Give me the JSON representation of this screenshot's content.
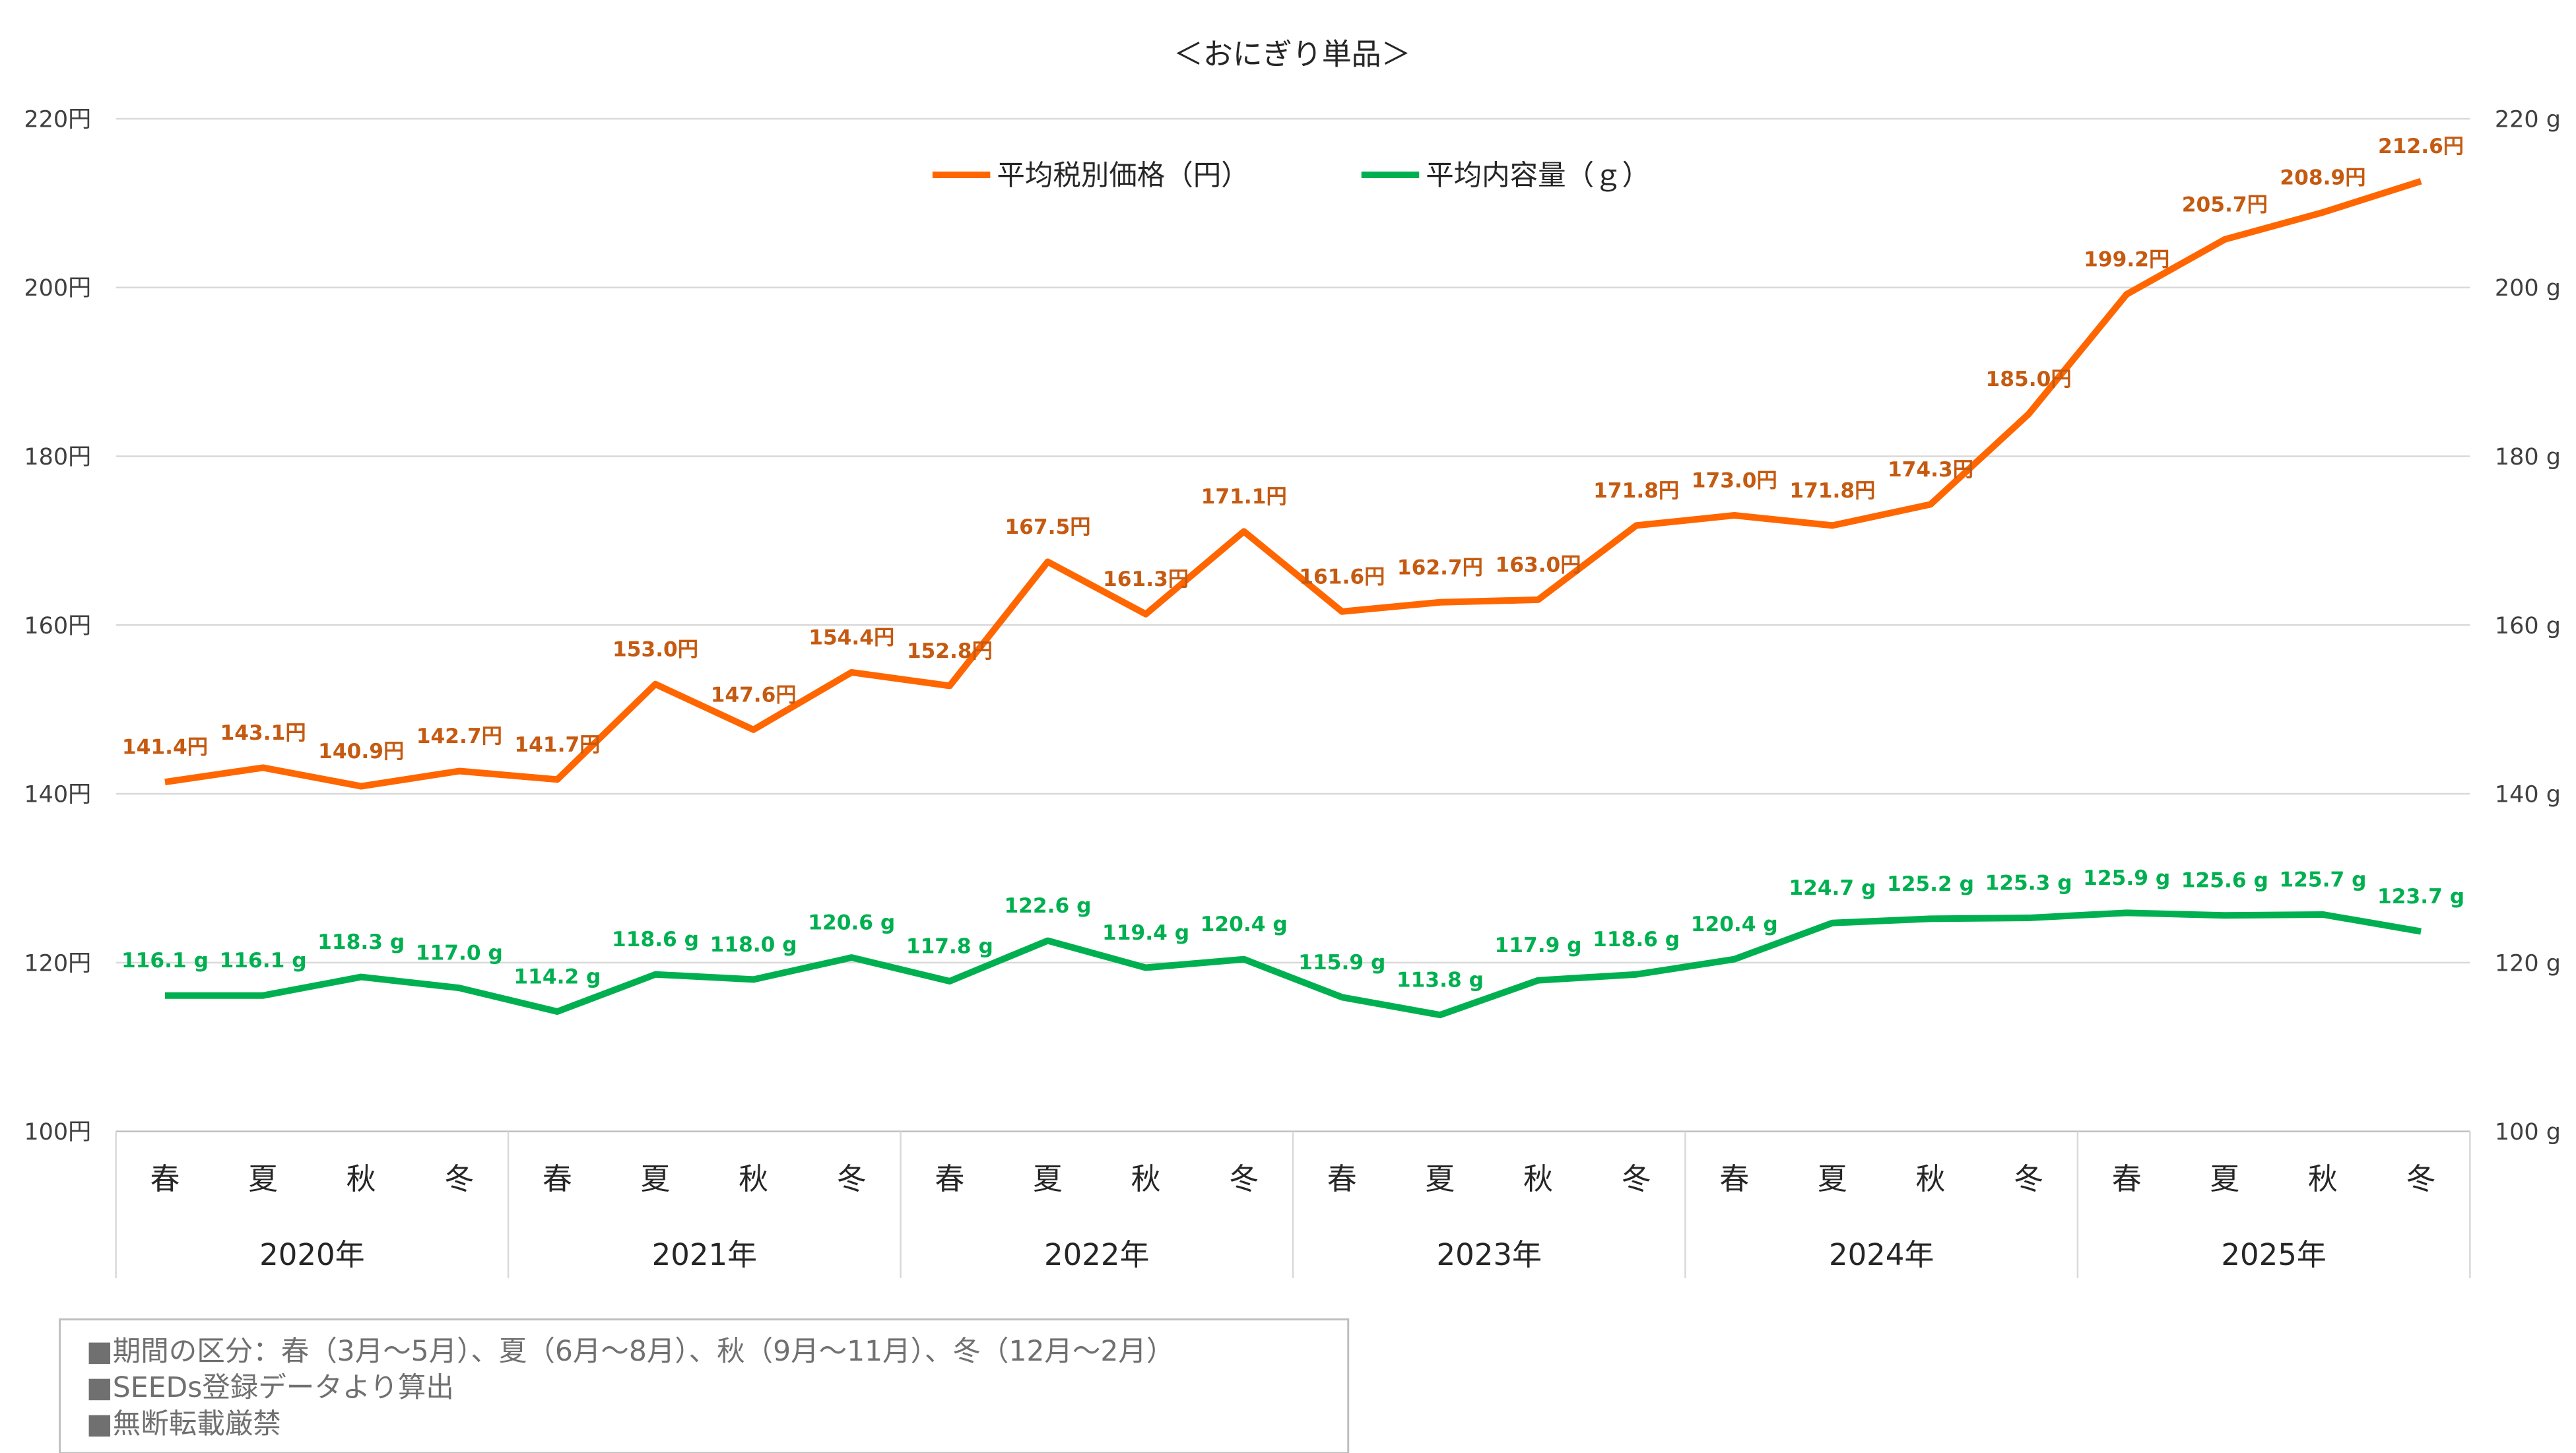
{
  "chart_data": {
    "type": "line",
    "title": "＜おにぎり単品＞",
    "years": [
      "2020年",
      "2021年",
      "2022年",
      "2023年",
      "2024年",
      "2025年"
    ],
    "seasons": [
      "春",
      "夏",
      "秋",
      "冬"
    ],
    "y_left": {
      "min": 100,
      "max": 220,
      "step": 20,
      "suffix": "円"
    },
    "y_right": {
      "min": 100,
      "max": 220,
      "step": 20,
      "suffix": "g"
    },
    "grid": true,
    "legend_position": "top-center",
    "series": [
      {
        "name": "平均税別価格（円）",
        "axis": "left",
        "color": "#FF6600",
        "label_color": "#C55A11",
        "unit": "円",
        "values": [
          141.4,
          143.1,
          140.9,
          142.7,
          141.7,
          153.0,
          147.6,
          154.4,
          152.8,
          167.5,
          161.3,
          171.1,
          161.6,
          162.7,
          163.0,
          171.8,
          173.0,
          171.8,
          174.3,
          185.0,
          199.2,
          205.7,
          208.9,
          212.6
        ]
      },
      {
        "name": "平均内容量（ｇ）",
        "axis": "right",
        "color": "#00B050",
        "label_color": "#00B050",
        "unit": "g",
        "values": [
          116.1,
          116.1,
          118.3,
          117.0,
          114.2,
          118.6,
          118.0,
          120.6,
          117.8,
          122.6,
          119.4,
          120.4,
          115.9,
          113.8,
          117.9,
          118.6,
          120.4,
          124.7,
          125.2,
          125.3,
          125.9,
          125.6,
          125.7,
          123.7
        ]
      }
    ],
    "notes": [
      "■期間の区分：春（3月～5月）、夏（6月～8月）、秋（9月～11月）、冬（12月～2月）",
      "■SEEDs登録データより算出",
      "■無断転載厳禁"
    ]
  }
}
